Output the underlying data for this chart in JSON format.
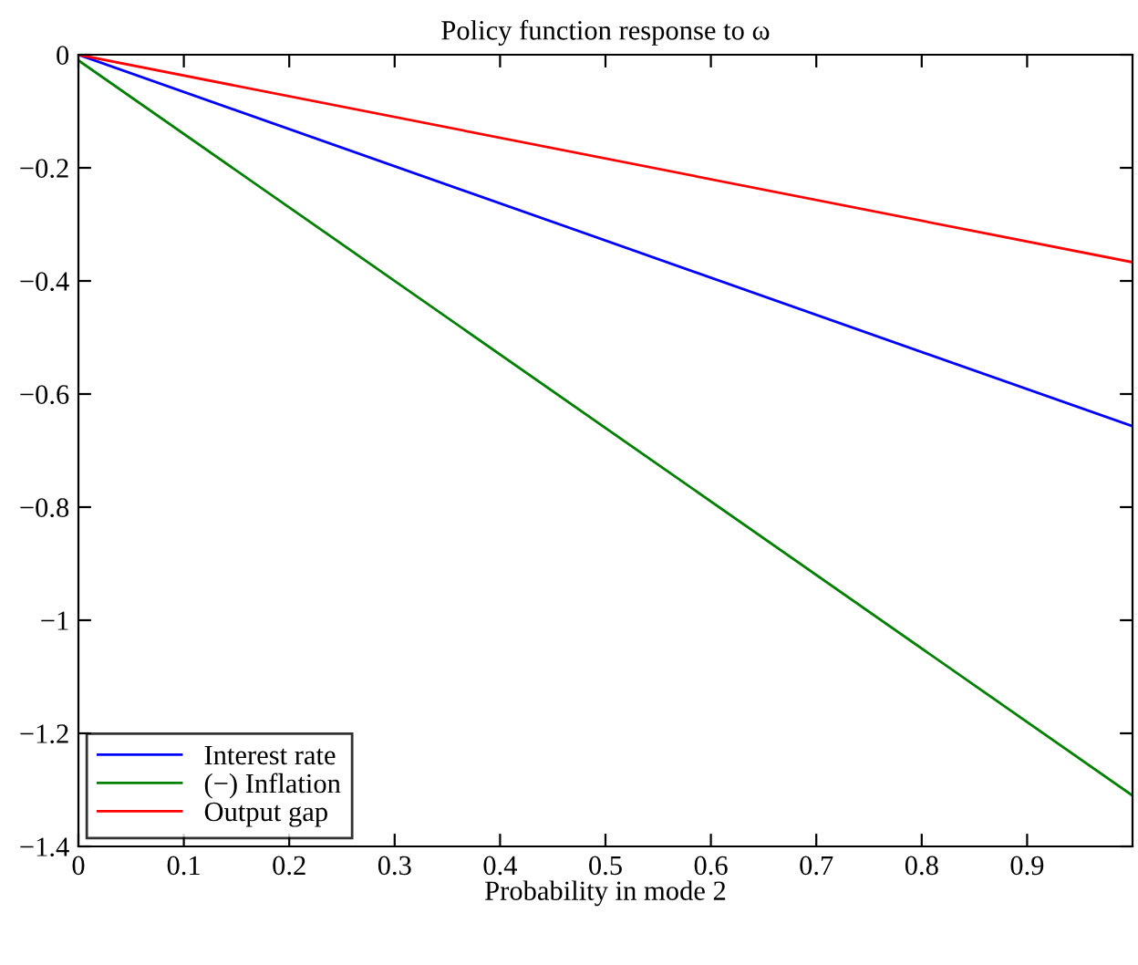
{
  "chart_data": {
    "type": "line",
    "title": "Policy function response to ω",
    "xlabel": "Probability in mode 2",
    "x": [
      0,
      1
    ],
    "series": [
      {
        "name": "Interest rate",
        "color": "#0000ff",
        "values": [
          0,
          -0.657
        ]
      },
      {
        "name": "(−) Inflation",
        "color": "#008000",
        "values": [
          -0.01,
          -1.31
        ]
      },
      {
        "name": "Output gap",
        "color": "#ff0000",
        "values": [
          0,
          -0.367
        ]
      }
    ],
    "xlim": [
      0,
      1
    ],
    "xticks": [
      0,
      0.1,
      0.2,
      0.3,
      0.4,
      0.5,
      0.6,
      0.7,
      0.8,
      0.9
    ],
    "ylim": [
      -1.4,
      0
    ],
    "yticks": [
      {
        "value": -1.4,
        "label": "−1.4"
      },
      {
        "value": -1.2,
        "label": "−1.2"
      },
      {
        "value": -1,
        "label": "−1"
      },
      {
        "value": -0.8,
        "label": "−0.8"
      },
      {
        "value": -0.6,
        "label": "−0.6"
      },
      {
        "value": -0.4,
        "label": "−0.4"
      },
      {
        "value": -0.2,
        "label": "−0.2"
      },
      0
    ],
    "legend": "bottom left",
    "grid": false,
    "marker": "none",
    "line_style": "solid"
  }
}
